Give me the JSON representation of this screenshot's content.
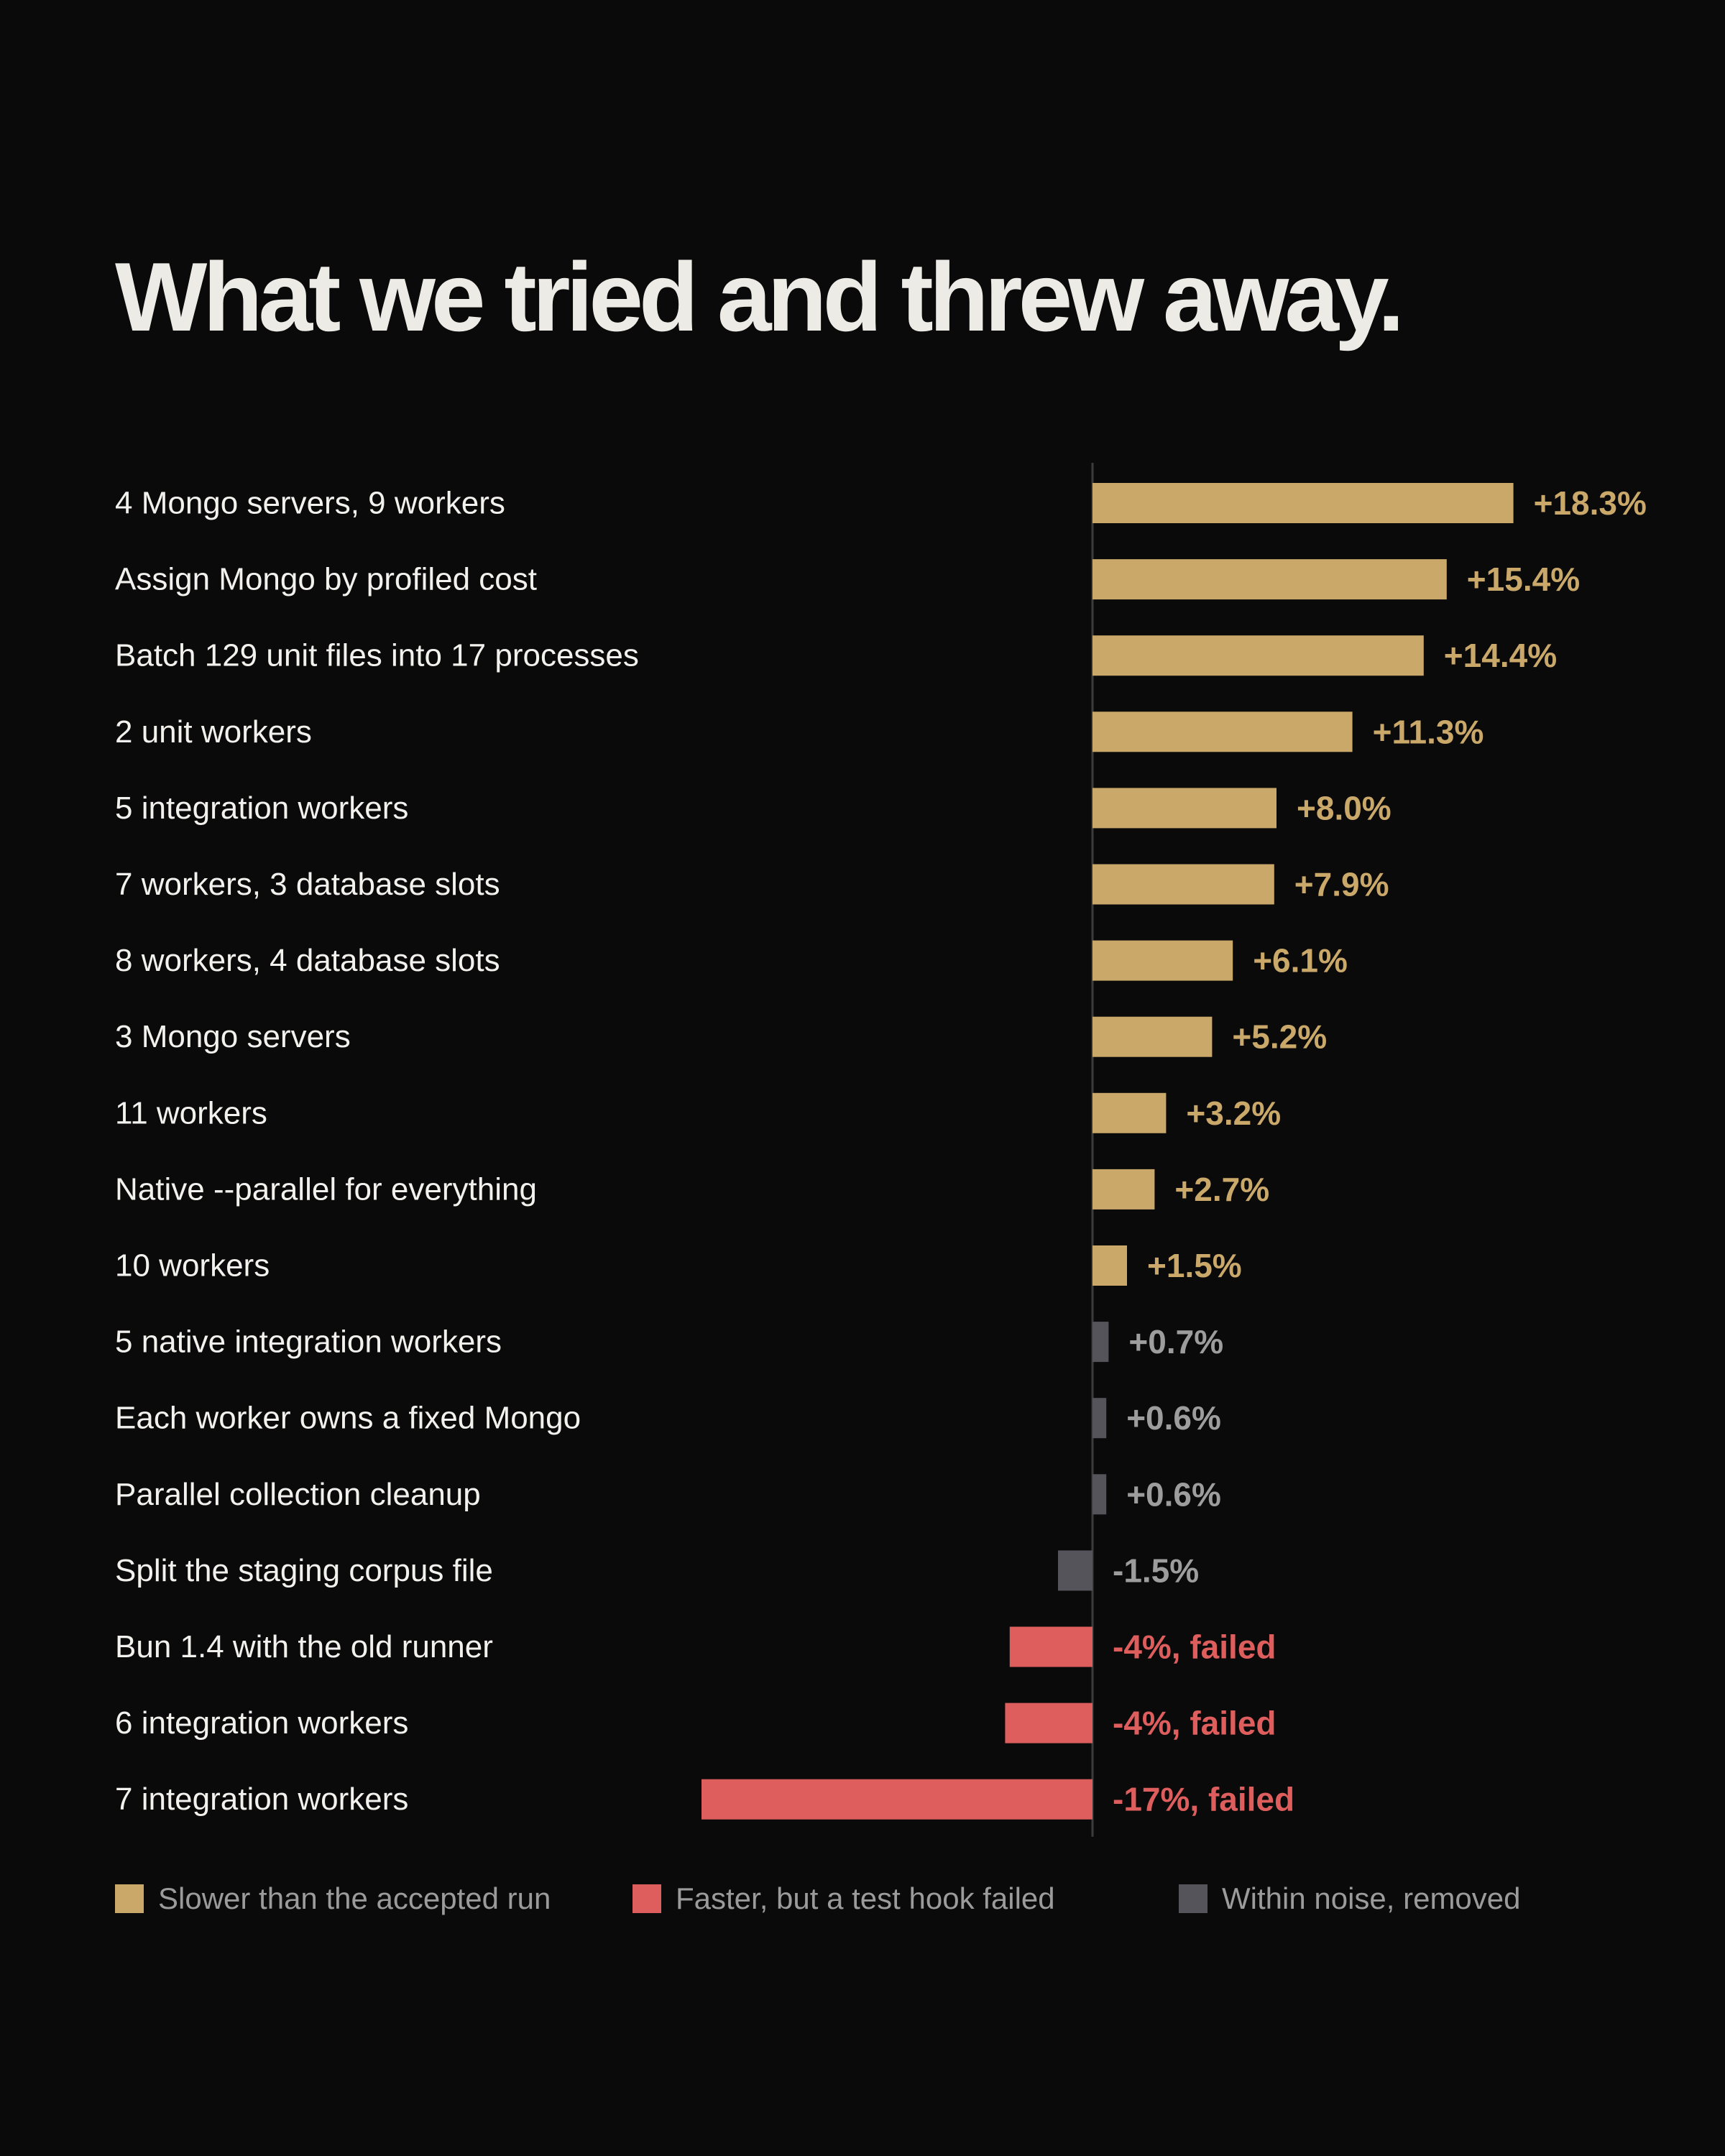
{
  "colors": {
    "background": "#0a0a0a",
    "slower": "#c9a86a",
    "failed": "#dd5e5d",
    "noise": "#55545a",
    "noise_text": "#9d9d9d",
    "axis": "#3c3c3c"
  },
  "chart_data": {
    "type": "bar",
    "orientation": "horizontal",
    "title": "What we tried and threw away.",
    "xlim": [
      -20,
      22
    ],
    "grid": false,
    "legend_position": "bottom",
    "categories": [
      "4 Mongo servers, 9 workers",
      "Assign Mongo by profiled cost",
      "Batch 129 unit files into 17 processes",
      "2 unit workers",
      "5 integration workers",
      "7 workers, 3 database slots",
      "8 workers, 4 database slots",
      "3 Mongo servers",
      "11 workers",
      "Native --parallel for everything",
      "10 workers",
      "5 native integration workers",
      "Each worker owns a fixed Mongo",
      "Parallel collection cleanup",
      "Split the staging corpus file",
      "Bun 1.4 with the old runner",
      "6 integration workers",
      "7 integration workers"
    ],
    "values": [
      18.3,
      15.4,
      14.4,
      11.3,
      8.0,
      7.9,
      6.1,
      5.2,
      3.2,
      2.7,
      1.5,
      0.7,
      0.6,
      0.6,
      -1.5,
      -3.6,
      -3.8,
      -17.0
    ],
    "value_labels": [
      "+18.3%",
      "+15.4%",
      "+14.4%",
      "+11.3%",
      "+8.0%",
      "+7.9%",
      "+6.1%",
      "+5.2%",
      "+3.2%",
      "+2.7%",
      "+1.5%",
      "+0.7%",
      "+0.6%",
      "+0.6%",
      "-1.5%",
      "-4%, failed",
      "-4%, failed",
      "-17%, failed"
    ],
    "groups": [
      "slower",
      "slower",
      "slower",
      "slower",
      "slower",
      "slower",
      "slower",
      "slower",
      "slower",
      "slower",
      "slower",
      "noise",
      "noise",
      "noise",
      "noise",
      "failed",
      "failed",
      "failed"
    ],
    "legend": [
      {
        "key": "slower",
        "label": "Slower than the accepted run"
      },
      {
        "key": "failed",
        "label": "Faster, but a test hook failed"
      },
      {
        "key": "noise",
        "label": "Within noise, removed"
      }
    ]
  }
}
